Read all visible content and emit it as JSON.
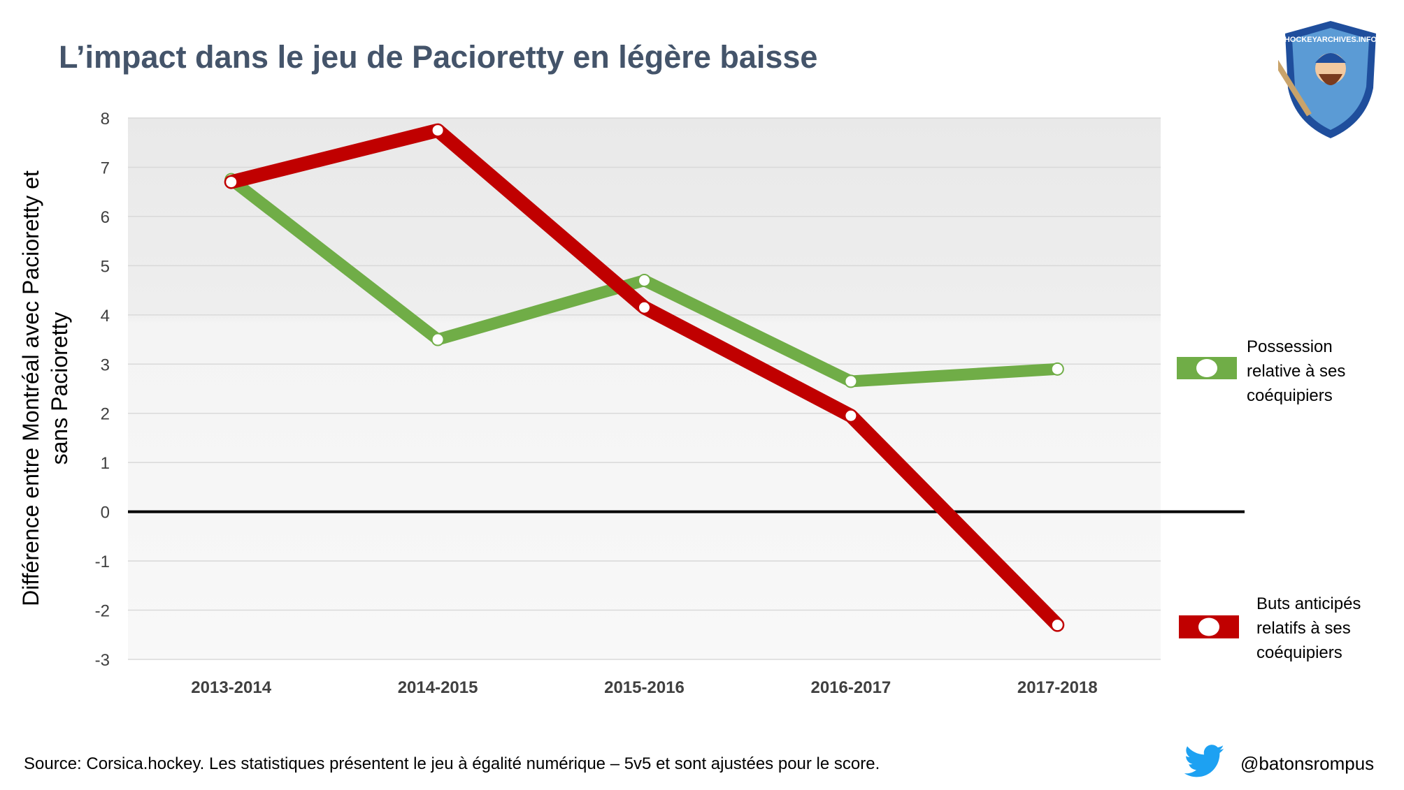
{
  "title": "L’impact dans le jeu de Pacioretty en légère baisse",
  "source": "Source: Corsica.hockey. Les statistiques présentent le jeu à égalité numérique – 5v5 et sont ajustées pour le score.",
  "handle": "@batonsrompus",
  "logo_text": "HOCKEYARCHIVES.INFO",
  "icons": {
    "social": "twitter-bird-icon",
    "logo": "hockey-player-shield-logo"
  },
  "colors": {
    "green": "#70ad47",
    "red": "#c00000",
    "zero_line": "#000000",
    "grid": "#d9d9d9"
  },
  "chart_data": {
    "type": "line",
    "title": "L’impact dans le jeu de Pacioretty en légère baisse",
    "ylabel_lines": [
      "Différence entre Montréal avec Pacioretty et",
      "sans Pacioretty"
    ],
    "xlabel": "",
    "categories": [
      "2013-2014",
      "2014-2015",
      "2015-2016",
      "2016-2017",
      "2017-2018"
    ],
    "ylim": [
      -3,
      8
    ],
    "yticks": [
      8,
      7,
      6,
      5,
      4,
      3,
      2,
      1,
      0,
      -1,
      -2,
      -3
    ],
    "grid": true,
    "legend_position": "right",
    "series": [
      {
        "name_lines": [
          "Possession",
          "relative à ses",
          "coéquipiers"
        ],
        "color": "#70ad47",
        "values": [
          6.75,
          3.5,
          4.7,
          2.65,
          2.9
        ]
      },
      {
        "name_lines": [
          "Buts anticipés",
          "relatifs à ses",
          "coéquipiers"
        ],
        "color": "#c00000",
        "values": [
          6.7,
          7.75,
          4.15,
          1.95,
          -2.3
        ]
      }
    ]
  }
}
